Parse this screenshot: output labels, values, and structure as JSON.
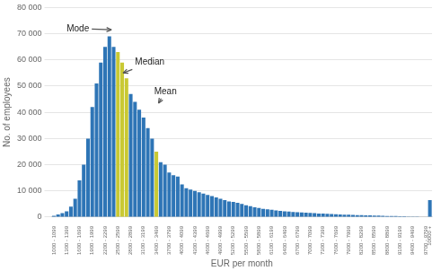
{
  "chart_data": {
    "type": "bar",
    "xlabel": "EUR per month",
    "ylabel": "No. of employees",
    "categories": [
      "1000 - 1099",
      null,
      null,
      "1300 - 1399",
      null,
      null,
      "1600 - 1699",
      null,
      null,
      "1900 - 1999",
      null,
      null,
      "2200 - 2299",
      null,
      null,
      "2500 - 2599",
      null,
      null,
      "2800 - 2899",
      null,
      null,
      "3100 - 3199",
      null,
      null,
      "3400 - 3499",
      null,
      null,
      "3700 - 3799",
      null,
      null,
      "4000 - 4099",
      null,
      null,
      "4300 - 4399",
      null,
      null,
      "4600 - 4699",
      null,
      null,
      "4900 - 4999",
      null,
      null,
      "5200 - 5299",
      null,
      null,
      "5500 - 5599",
      null,
      null,
      "5800 - 5899",
      null,
      null,
      "6100 - 6199",
      null,
      null,
      "6400 - 6499",
      null,
      null,
      "6700 - 6799",
      null,
      null,
      "7000 - 7099",
      null,
      null,
      "7300 - 7399",
      null,
      null,
      "7600 - 7699",
      null,
      null,
      "7900 - 7999",
      null,
      null,
      "8200 - 8299",
      null,
      null,
      "8500 - 8599",
      null,
      null,
      "8800 - 8899",
      null,
      null,
      "9100 - 9199",
      null,
      null,
      "9400 - 9499",
      null,
      null,
      "9700 - 9799",
      "10000 +"
    ],
    "values": [
      500,
      1000,
      1500,
      2200,
      4000,
      7000,
      14000,
      20000,
      30000,
      42000,
      51000,
      59000,
      65000,
      69000,
      65000,
      63000,
      59000,
      53000,
      47000,
      44000,
      41000,
      38000,
      34000,
      30000,
      25000,
      21000,
      20000,
      17000,
      16000,
      15500,
      12500,
      11000,
      10500,
      10000,
      9500,
      9000,
      8500,
      8000,
      7500,
      7000,
      6500,
      6000,
      5800,
      5500,
      5000,
      4500,
      4200,
      3800,
      3500,
      3200,
      3000,
      2800,
      2600,
      2400,
      2200,
      2100,
      2000,
      1900,
      1800,
      1700,
      1600,
      1500,
      1400,
      1350,
      1300,
      1200,
      1100,
      1000,
      950,
      900,
      850,
      800,
      750,
      700,
      650,
      600,
      550,
      500,
      450,
      400,
      380,
      350,
      300,
      280,
      250,
      220,
      200,
      150,
      6500
    ],
    "colors": [
      "#2e75b6",
      "#2e75b6",
      "#2e75b6",
      "#2e75b6",
      "#2e75b6",
      "#2e75b6",
      "#2e75b6",
      "#2e75b6",
      "#2e75b6",
      "#2e75b6",
      "#2e75b6",
      "#2e75b6",
      "#2e75b6",
      "#2e75b6",
      "#2e75b6",
      "#c9c933",
      "#c9c933",
      "#c9c933",
      "#2e75b6",
      "#2e75b6",
      "#2e75b6",
      "#2e75b6",
      "#2e75b6",
      "#2e75b6",
      "#c9c933",
      "#2e75b6",
      "#2e75b6",
      "#2e75b6",
      "#2e75b6",
      "#2e75b6",
      "#2e75b6",
      "#2e75b6",
      "#2e75b6",
      "#2e75b6",
      "#2e75b6",
      "#2e75b6",
      "#2e75b6",
      "#2e75b6",
      "#2e75b6",
      "#2e75b6",
      "#2e75b6",
      "#2e75b6",
      "#2e75b6",
      "#2e75b6",
      "#2e75b6",
      "#2e75b6",
      "#2e75b6",
      "#2e75b6",
      "#2e75b6",
      "#2e75b6",
      "#2e75b6",
      "#2e75b6",
      "#2e75b6",
      "#2e75b6",
      "#2e75b6",
      "#2e75b6",
      "#2e75b6",
      "#2e75b6",
      "#2e75b6",
      "#2e75b6",
      "#2e75b6",
      "#2e75b6",
      "#2e75b6",
      "#2e75b6",
      "#2e75b6",
      "#2e75b6",
      "#2e75b6",
      "#2e75b6",
      "#2e75b6",
      "#2e75b6",
      "#2e75b6",
      "#2e75b6",
      "#2e75b6",
      "#2e75b6",
      "#2e75b6",
      "#2e75b6",
      "#2e75b6",
      "#2e75b6",
      "#2e75b6",
      "#2e75b6",
      "#2e75b6",
      "#2e75b6",
      "#2e75b6",
      "#2e75b6",
      "#2e75b6",
      "#2e75b6",
      "#2e75b6",
      "#2e75b6",
      "#2e75b6"
    ],
    "ylim": [
      0,
      80000
    ],
    "yticks": [
      0,
      {
        "value": 10000,
        "label": "10 000"
      },
      {
        "value": 20000,
        "label": "20 000"
      },
      {
        "value": 30000,
        "label": "30 000"
      },
      {
        "value": 40000,
        "label": "40 000"
      },
      {
        "value": 50000,
        "label": "50 000"
      },
      {
        "value": 60000,
        "label": "60 000"
      },
      {
        "value": 70000,
        "label": "70 000"
      },
      {
        "value": 80000,
        "label": "80 000"
      }
    ],
    "grid": true,
    "annotations": [
      {
        "text": "Mode",
        "xytext": [
          3.0,
          72000
        ],
        "xy": [
          13.5,
          71500
        ]
      },
      {
        "text": "Median",
        "xytext": [
          19.0,
          59000
        ],
        "xy": [
          16.2,
          55000
        ]
      },
      {
        "text": "Mean",
        "xytext": [
          23.5,
          48000
        ],
        "xy": [
          24.5,
          43500
        ]
      }
    ]
  }
}
